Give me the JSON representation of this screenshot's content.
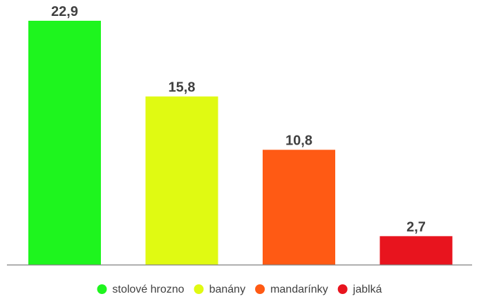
{
  "chart_data": {
    "type": "bar",
    "categories": [
      "stolové hrozno",
      "banány",
      "mandarínky",
      "jablká"
    ],
    "values": [
      22.9,
      15.8,
      10.8,
      2.7
    ],
    "value_labels": [
      "22,9",
      "15,8",
      "10,8",
      "2,7"
    ],
    "colors": [
      "#1ef51e",
      "#e0fa12",
      "#ff5a14",
      "#e8141e"
    ],
    "ylim": [
      0,
      22.9
    ],
    "grid": false,
    "legend_position": "bottom",
    "title": "",
    "xlabel": "",
    "ylabel": ""
  }
}
